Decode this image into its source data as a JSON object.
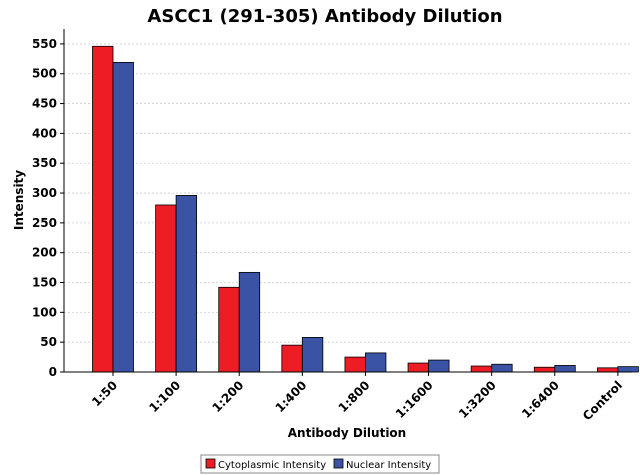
{
  "chart_data": {
    "type": "bar",
    "title": "ASCC1 (291-305) Antibody Dilution",
    "xlabel": "Antibody Dilution",
    "ylabel": "Intensity",
    "ylim": [
      0,
      575
    ],
    "yticks": [
      0,
      50,
      100,
      150,
      200,
      250,
      300,
      350,
      400,
      450,
      500,
      550
    ],
    "grid": true,
    "legend_position": "bottom-center",
    "categories": [
      "1:50",
      "1:100",
      "1:200",
      "1:400",
      "1:800",
      "1:1600",
      "1:3200",
      "1:6400",
      "Control"
    ],
    "series": [
      {
        "name": "Cytoplasmic Intensity",
        "color": "#ee1c25",
        "values": [
          546,
          280,
          142,
          45,
          25,
          15,
          10,
          8,
          7
        ]
      },
      {
        "name": "Nuclear Intensity",
        "color": "#3a53a4",
        "values": [
          519,
          296,
          167,
          58,
          32,
          20,
          13,
          11,
          9
        ]
      }
    ]
  }
}
